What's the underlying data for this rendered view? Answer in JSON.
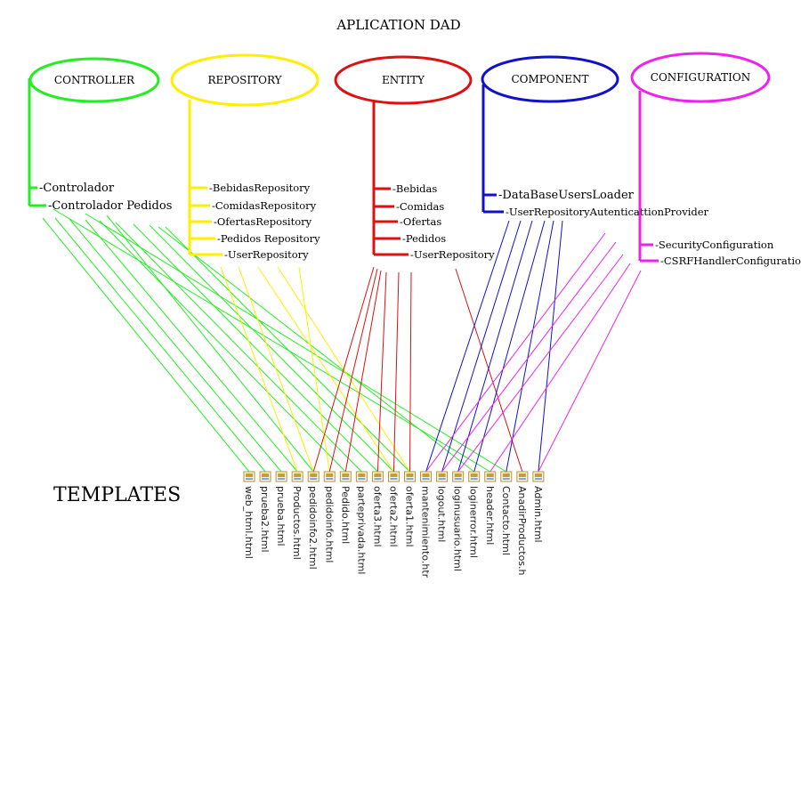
{
  "title": "APLICATION DAD",
  "templates_heading": "TEMPLATES",
  "categories": [
    {
      "id": "controller",
      "label": "CONTROLLER",
      "color": "#22ee22",
      "items": [
        "-Controlador",
        "-Controlador Pedidos"
      ]
    },
    {
      "id": "repository",
      "label": "REPOSITORY",
      "color": "#ffee00",
      "items": [
        "-BebidasRepository",
        "-ComidasRepository",
        "-OfertasRepository",
        "-Pedidos Repository",
        "-UserRepository"
      ]
    },
    {
      "id": "entity",
      "label": "ENTITY",
      "color": "#dd1111",
      "items": [
        "-Bebidas",
        "-Comidas",
        "-Ofertas",
        "-Pedidos",
        "-UserRepository"
      ]
    },
    {
      "id": "component",
      "label": "COMPONENT",
      "color": "#1111cc",
      "items": [
        "-DataBaseUsersLoader",
        "-UserRepositoryAutenticattionProvider"
      ]
    },
    {
      "id": "configuration",
      "label": "CONFIGURATION",
      "color": "#ee22ee",
      "items": [
        "-SecurityConfiguration",
        "-CSRFHandlerConfiguration"
      ]
    }
  ],
  "templates": [
    "web_html.html",
    "prueba2.html",
    "prueba.html",
    "Productos.html",
    "pedidoinfo2.html",
    "pedidoinfo.html",
    "Pedido.html",
    "parteprivada.html",
    "oferta3.html",
    "oferta2.html",
    "oferta1.html",
    "mantenimiento.htr",
    "logout.html",
    "loginusuario.html",
    "loginerror.html",
    "header.html",
    "Contacto.html",
    "AnadirProductos.h",
    "Admin.html"
  ],
  "file_icon": "html-file-icon"
}
